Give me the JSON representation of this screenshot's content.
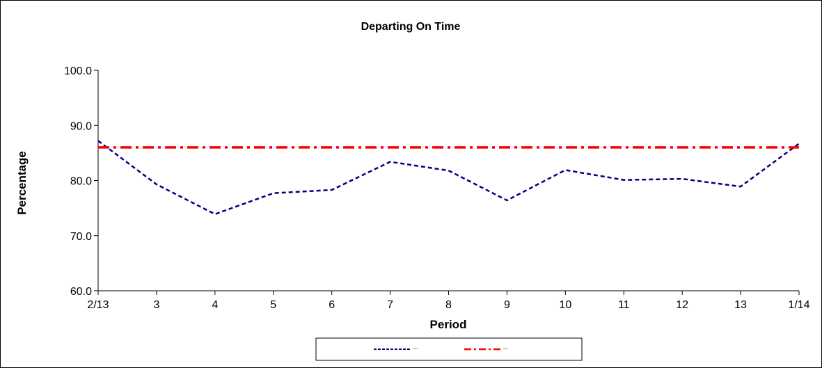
{
  "chart_data": {
    "type": "line",
    "title": "Departing On Time",
    "xlabel": "Period",
    "ylabel": "Percentage",
    "categories": [
      "2/13",
      "3",
      "4",
      "5",
      "6",
      "7",
      "8",
      "9",
      "10",
      "11",
      "12",
      "13",
      "1/14"
    ],
    "ylim": [
      60,
      100
    ],
    "yticks": [
      "60.0",
      "70.0",
      "80.0",
      "90.0",
      "100.0"
    ],
    "yticks_values": [
      60,
      70,
      80,
      90,
      100
    ],
    "grid": false,
    "legend_position": "bottom",
    "series": [
      {
        "values": [
          87.2,
          79.3,
          73.9,
          77.7,
          78.3,
          83.4,
          81.8,
          76.4,
          81.9,
          80.1,
          80.3,
          78.9,
          86.7
        ],
        "color": "#000080",
        "style": "dashed"
      },
      {
        "values": [
          86.0,
          86.0,
          86.0,
          86.0,
          86.0,
          86.0,
          86.0,
          86.0,
          86.0,
          86.0,
          86.0,
          86.0,
          86.0
        ],
        "color": "#ff0000",
        "style": "dash-dot"
      }
    ]
  }
}
